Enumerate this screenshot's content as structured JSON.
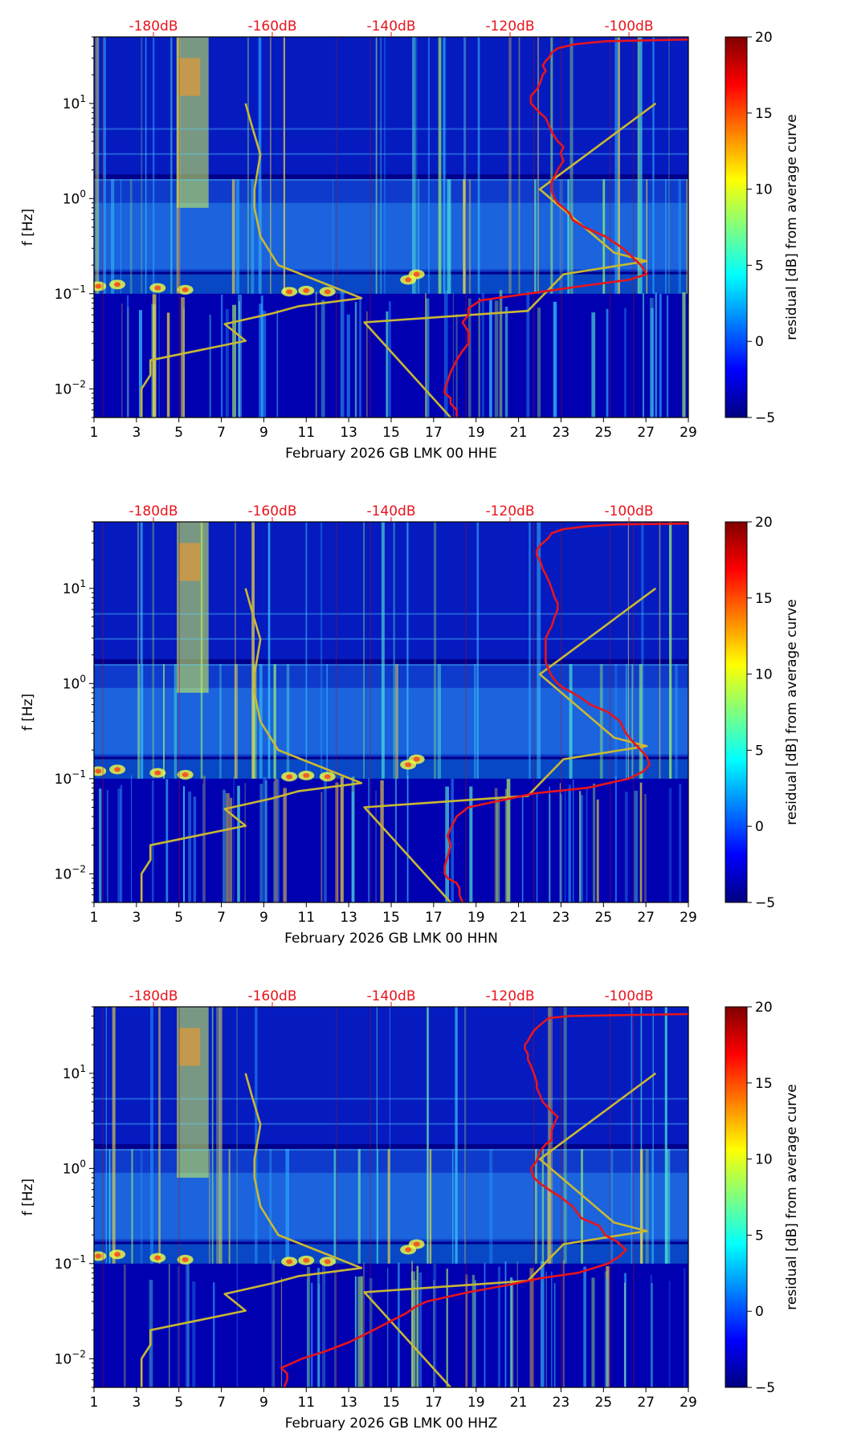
{
  "colors": {
    "db_text": "#e8141c",
    "psd_line": "#e8141c",
    "model_line": "#c9b832",
    "background": "#00008c"
  },
  "colormap": [
    "#00007f",
    "#0000ff",
    "#007fff",
    "#00ffff",
    "#7fff7f",
    "#ffff00",
    "#ff7f00",
    "#ff0000",
    "#7f0000"
  ],
  "chart_data": [
    {
      "type": "heatmap",
      "title": "",
      "xlabel": "February 2026 GB LMK 00 HHE",
      "ylabel": "f [Hz]",
      "xlim": [
        1,
        29
      ],
      "ylim": [
        0.005,
        50
      ],
      "yscale": "log",
      "x_ticks": [
        "1",
        "3",
        "5",
        "7",
        "9",
        "11",
        "13",
        "15",
        "17",
        "19",
        "21",
        "23",
        "25",
        "27",
        "29"
      ],
      "y_ticks": [
        {
          "value": 0.01,
          "base": "10",
          "exp": "−2"
        },
        {
          "value": 0.1,
          "base": "10",
          "exp": "−1"
        },
        {
          "value": 1,
          "base": "10",
          "exp": "0"
        },
        {
          "value": 10,
          "base": "10",
          "exp": "1"
        }
      ],
      "db_scale": {
        "labels": [
          "-180dB",
          "-160dB",
          "-140dB",
          "-120dB",
          "-100dB"
        ],
        "values": [
          -180,
          -160,
          -140,
          -120,
          -100
        ],
        "range": [
          -190,
          -90
        ]
      },
      "colorbar": {
        "label": "residual [dB] from average curve",
        "range": [
          -5,
          20
        ],
        "ticks": [
          "−5",
          "0",
          "5",
          "10",
          "15",
          "20"
        ],
        "values": [
          -5,
          0,
          5,
          10,
          15,
          20
        ]
      },
      "noise_model": {
        "name": "noise model",
        "db": [
          -182,
          -182,
          -180.5,
          -180.5,
          -164.5,
          -168,
          -160,
          -155.5,
          -145,
          -159,
          -162,
          -163,
          -163,
          -162,
          -163.5,
          -164.5
        ],
        "f": [
          0.005,
          0.01,
          0.014,
          0.02,
          0.032,
          0.048,
          0.062,
          0.074,
          0.09,
          0.2,
          0.4,
          0.8,
          1.25,
          2.9,
          6,
          10
        ]
      },
      "high_noise_model": {
        "name": "high noise model",
        "db": [
          -130,
          -144.5,
          -117,
          -111,
          -97,
          -102.5,
          -115,
          -95.5
        ],
        "f": [
          0.005,
          0.05,
          0.066,
          0.16,
          0.22,
          0.27,
          1.25,
          10
        ]
      },
      "psd_curve": {
        "name": "PSD level",
        "db": [
          -129,
          -129,
          -130,
          -130,
          -131,
          -131,
          -130.5,
          -130,
          -129,
          -128,
          -127,
          -127,
          -128,
          -127,
          -127,
          -125,
          -117,
          -108,
          -100,
          -97,
          -98,
          -101,
          -104,
          -107.5,
          -109.5,
          -110,
          -111,
          -112,
          -112.5,
          -113,
          -113,
          -112.5,
          -112,
          -111,
          -111.5,
          -111,
          -112,
          -113,
          -113.5,
          -114,
          -115,
          -116.5,
          -116.5,
          -115.5,
          -115,
          -114.5,
          -114,
          -114.5,
          -114,
          -113.5,
          -113,
          -112,
          -109,
          -104,
          -90
        ],
        "f": [
          0.005,
          0.006,
          0.007,
          0.008,
          0.009,
          0.01,
          0.012,
          0.015,
          0.02,
          0.025,
          0.03,
          0.04,
          0.05,
          0.06,
          0.07,
          0.085,
          0.1,
          0.12,
          0.14,
          0.16,
          0.2,
          0.3,
          0.4,
          0.5,
          0.6,
          0.7,
          0.8,
          0.9,
          1,
          1.2,
          1.5,
          1.7,
          2,
          2.5,
          3,
          3.5,
          4,
          5,
          6,
          7,
          8,
          10,
          12,
          14,
          16,
          20,
          22,
          25,
          28,
          30,
          34,
          38,
          42,
          45,
          47
        ]
      }
    },
    {
      "type": "heatmap",
      "title": "",
      "xlabel": "February 2026 GB LMK 00 HHN",
      "ylabel": "f [Hz]",
      "xlim": [
        1,
        29
      ],
      "ylim": [
        0.005,
        50
      ],
      "yscale": "log",
      "x_ticks": [
        "1",
        "3",
        "5",
        "7",
        "9",
        "11",
        "13",
        "15",
        "17",
        "19",
        "21",
        "23",
        "25",
        "27",
        "29"
      ],
      "y_ticks": [
        {
          "value": 0.01,
          "base": "10",
          "exp": "−2"
        },
        {
          "value": 0.1,
          "base": "10",
          "exp": "−1"
        },
        {
          "value": 1,
          "base": "10",
          "exp": "0"
        },
        {
          "value": 10,
          "base": "10",
          "exp": "1"
        }
      ],
      "db_scale": {
        "labels": [
          "-180dB",
          "-160dB",
          "-140dB",
          "-120dB",
          "-100dB"
        ],
        "values": [
          -180,
          -160,
          -140,
          -120,
          -100
        ],
        "range": [
          -190,
          -90
        ]
      },
      "colorbar": {
        "label": "residual [dB] from average curve",
        "range": [
          -5,
          20
        ],
        "ticks": [
          "−5",
          "0",
          "5",
          "10",
          "15",
          "20"
        ],
        "values": [
          -5,
          0,
          5,
          10,
          15,
          20
        ]
      },
      "noise_model": {
        "name": "noise model",
        "db": [
          -182,
          -182,
          -180.5,
          -180.5,
          -164.5,
          -168,
          -160,
          -155.5,
          -145,
          -159,
          -162,
          -163,
          -163,
          -162,
          -163.5,
          -164.5
        ],
        "f": [
          0.005,
          0.01,
          0.014,
          0.02,
          0.032,
          0.048,
          0.062,
          0.074,
          0.09,
          0.2,
          0.4,
          0.8,
          1.25,
          2.9,
          6,
          10
        ]
      },
      "high_noise_model": {
        "name": "high noise model",
        "db": [
          -130,
          -144.5,
          -117,
          -111,
          -97,
          -102.5,
          -115,
          -95.5
        ],
        "f": [
          0.005,
          0.05,
          0.066,
          0.16,
          0.22,
          0.27,
          1.25,
          10
        ]
      },
      "psd_curve": {
        "name": "PSD level",
        "db": [
          -128,
          -128.5,
          -128.5,
          -129,
          -130.5,
          -131,
          -131,
          -130.5,
          -130,
          -130.5,
          -130,
          -129,
          -127,
          -121,
          -116,
          -107,
          -100,
          -97.5,
          -96.5,
          -97,
          -98,
          -99.5,
          -100.5,
          -101.5,
          -103.5,
          -106.5,
          -108,
          -109.5,
          -111,
          -112,
          -113,
          -113.5,
          -114,
          -114,
          -114,
          -114,
          -113.5,
          -113,
          -112.5,
          -112,
          -112,
          -112.5,
          -113,
          -113.5,
          -114,
          -114.5,
          -115,
          -115.5,
          -115.5,
          -115,
          -114.5,
          -113.5,
          -113,
          -111,
          -107,
          -102,
          -90
        ],
        "f": [
          0.005,
          0.006,
          0.007,
          0.008,
          0.009,
          0.01,
          0.012,
          0.015,
          0.02,
          0.025,
          0.03,
          0.04,
          0.05,
          0.06,
          0.07,
          0.08,
          0.1,
          0.12,
          0.14,
          0.17,
          0.2,
          0.25,
          0.3,
          0.4,
          0.5,
          0.6,
          0.7,
          0.8,
          0.9,
          1,
          1.2,
          1.4,
          1.7,
          2,
          2.5,
          3,
          3.5,
          4,
          5,
          6,
          7,
          8,
          10,
          12,
          14,
          16,
          20,
          22,
          25,
          28,
          30,
          34,
          38,
          42,
          45,
          47,
          48
        ]
      }
    },
    {
      "type": "heatmap",
      "title": "",
      "xlabel": "February 2026 GB LMK 00 HHZ",
      "ylabel": "f [Hz]",
      "xlim": [
        1,
        29
      ],
      "ylim": [
        0.005,
        50
      ],
      "yscale": "log",
      "x_ticks": [
        "1",
        "3",
        "5",
        "7",
        "9",
        "11",
        "13",
        "15",
        "17",
        "19",
        "21",
        "23",
        "25",
        "27",
        "29"
      ],
      "y_ticks": [
        {
          "value": 0.01,
          "base": "10",
          "exp": "−2"
        },
        {
          "value": 0.1,
          "base": "10",
          "exp": "−1"
        },
        {
          "value": 1,
          "base": "10",
          "exp": "0"
        },
        {
          "value": 10,
          "base": "10",
          "exp": "1"
        }
      ],
      "db_scale": {
        "labels": [
          "-180dB",
          "-160dB",
          "-140dB",
          "-120dB",
          "-100dB"
        ],
        "values": [
          -180,
          -160,
          -140,
          -120,
          -100
        ],
        "range": [
          -190,
          -90
        ]
      },
      "colorbar": {
        "label": "residual [dB] from average curve",
        "range": [
          -5,
          20
        ],
        "ticks": [
          "−5",
          "0",
          "5",
          "10",
          "15",
          "20"
        ],
        "values": [
          -5,
          0,
          5,
          10,
          15,
          20
        ]
      },
      "noise_model": {
        "name": "noise model",
        "db": [
          -182,
          -182,
          -180.5,
          -180.5,
          -164.5,
          -168,
          -160,
          -155.5,
          -145,
          -159,
          -162,
          -163,
          -163,
          -162,
          -163.5,
          -164.5
        ],
        "f": [
          0.005,
          0.01,
          0.014,
          0.02,
          0.032,
          0.048,
          0.062,
          0.074,
          0.09,
          0.2,
          0.4,
          0.8,
          1.25,
          2.9,
          6,
          10
        ]
      },
      "high_noise_model": {
        "name": "high noise model",
        "db": [
          -130,
          -144.5,
          -117,
          -111,
          -97,
          -102.5,
          -115,
          -95.5
        ],
        "f": [
          0.005,
          0.05,
          0.066,
          0.16,
          0.22,
          0.27,
          1.25,
          10
        ]
      },
      "psd_curve": {
        "name": "PSD level",
        "db": [
          -158,
          -157.5,
          -157.5,
          -158.5,
          -155,
          -151,
          -147,
          -143,
          -140,
          -137.5,
          -136,
          -134,
          -127,
          -120,
          -115,
          -108.5,
          -103.5,
          -101.5,
          -100.5,
          -102,
          -104,
          -105,
          -108,
          -109.5,
          -111.5,
          -113.5,
          -115,
          -116,
          -116.5,
          -115.5,
          -115,
          -114,
          -113,
          -113,
          -112.5,
          -112,
          -113,
          -114.5,
          -115,
          -115.5,
          -115.5,
          -116,
          -116.5,
          -117,
          -117,
          -117.5,
          -117.5,
          -117,
          -116.5,
          -116,
          -115.5,
          -114.5,
          -113.5,
          -110,
          -90
        ],
        "f": [
          0.005,
          0.006,
          0.007,
          0.008,
          0.01,
          0.012,
          0.015,
          0.02,
          0.025,
          0.03,
          0.035,
          0.04,
          0.05,
          0.06,
          0.07,
          0.08,
          0.1,
          0.12,
          0.14,
          0.17,
          0.2,
          0.25,
          0.3,
          0.4,
          0.5,
          0.6,
          0.7,
          0.8,
          1,
          1.2,
          1.5,
          1.8,
          2,
          2.5,
          3,
          3.5,
          4,
          5,
          6,
          7,
          8,
          10,
          12,
          14,
          16,
          18,
          20,
          22,
          25,
          28,
          30,
          34,
          38,
          40,
          42
        ]
      }
    }
  ]
}
